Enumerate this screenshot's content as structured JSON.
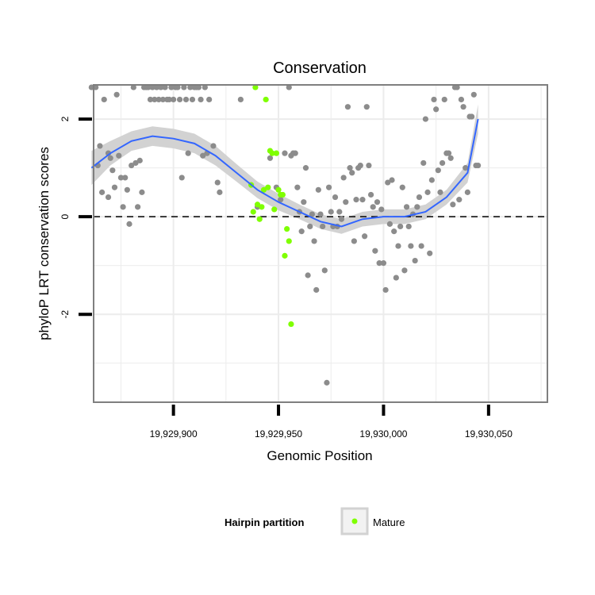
{
  "chart_data": {
    "type": "scatter",
    "title": "Conservation",
    "xlabel": "Genomic Position",
    "ylabel": "phyloP LRT conservation scores",
    "xlim": [
      19929862,
      19930078
    ],
    "ylim": [
      -3.8,
      2.7
    ],
    "x_ticks": [
      19929900,
      19929950,
      19930000,
      19930050
    ],
    "x_tick_labels": [
      "19,929,900",
      "19,929,950",
      "19,930,000",
      "19,930,050"
    ],
    "y_ticks": [
      -2,
      0,
      2
    ],
    "y_tick_labels": [
      "-2",
      "0",
      "2"
    ],
    "reference_line": {
      "y": 0,
      "style": "dashed"
    },
    "grid": true,
    "colors": {
      "other": "#8c8c8c",
      "mature": "#7fff00",
      "smooth": "#3366ff",
      "ribbon": "#d2d2d2",
      "panel_border": "#7f7f7f",
      "grid": "#ececec"
    },
    "series": [
      {
        "name": "Other",
        "legend": false,
        "points": [
          [
            19929861,
            2.65
          ],
          [
            19929863,
            2.65
          ],
          [
            19929864,
            1.05
          ],
          [
            19929865,
            1.45
          ],
          [
            19929866,
            0.5
          ],
          [
            19929867,
            2.4
          ],
          [
            19929869,
            1.3
          ],
          [
            19929869,
            0.4
          ],
          [
            19929870,
            1.2
          ],
          [
            19929871,
            0.95
          ],
          [
            19929872,
            0.6
          ],
          [
            19929873,
            2.5
          ],
          [
            19929874,
            1.25
          ],
          [
            19929875,
            0.8
          ],
          [
            19929876,
            0.2
          ],
          [
            19929877,
            0.8
          ],
          [
            19929878,
            0.55
          ],
          [
            19929879,
            -0.15
          ],
          [
            19929880,
            1.05
          ],
          [
            19929881,
            2.65
          ],
          [
            19929882,
            1.1
          ],
          [
            19929883,
            0.2
          ],
          [
            19929884,
            1.15
          ],
          [
            19929885,
            0.5
          ],
          [
            19929886,
            2.65
          ],
          [
            19929887,
            2.65
          ],
          [
            19929888,
            2.65
          ],
          [
            19929889,
            2.4
          ],
          [
            19929890,
            2.65
          ],
          [
            19929891,
            2.4
          ],
          [
            19929892,
            2.65
          ],
          [
            19929893,
            2.4
          ],
          [
            19929894,
            2.65
          ],
          [
            19929895,
            2.4
          ],
          [
            19929896,
            2.65
          ],
          [
            19929897,
            2.4
          ],
          [
            19929898,
            2.4
          ],
          [
            19929899,
            2.65
          ],
          [
            19929900,
            2.4
          ],
          [
            19929901,
            2.65
          ],
          [
            19929902,
            2.65
          ],
          [
            19929903,
            2.4
          ],
          [
            19929904,
            0.8
          ],
          [
            19929905,
            2.65
          ],
          [
            19929906,
            2.4
          ],
          [
            19929907,
            1.3
          ],
          [
            19929908,
            2.65
          ],
          [
            19929909,
            2.4
          ],
          [
            19929910,
            2.65
          ],
          [
            19929911,
            2.65
          ],
          [
            19929912,
            2.65
          ],
          [
            19929913,
            2.4
          ],
          [
            19929914,
            1.25
          ],
          [
            19929915,
            2.65
          ],
          [
            19929916,
            1.3
          ],
          [
            19929917,
            2.4
          ],
          [
            19929919,
            1.45
          ],
          [
            19929921,
            0.7
          ],
          [
            19929922,
            0.5
          ],
          [
            19929932,
            2.4
          ],
          [
            19929940,
            0.2
          ],
          [
            19929946,
            1.2
          ],
          [
            19929949,
            0.6
          ],
          [
            19929951,
            0.35
          ],
          [
            19929953,
            1.3
          ],
          [
            19929955,
            2.65
          ],
          [
            19929956,
            1.25
          ],
          [
            19929957,
            1.3
          ],
          [
            19929958,
            1.3
          ],
          [
            19929959,
            0.6
          ],
          [
            19929960,
            0.1
          ],
          [
            19929961,
            -0.3
          ],
          [
            19929962,
            0.3
          ],
          [
            19929963,
            1.0
          ],
          [
            19929964,
            -1.2
          ],
          [
            19929965,
            -0.2
          ],
          [
            19929966,
            0.05
          ],
          [
            19929967,
            -0.5
          ],
          [
            19929968,
            -1.5
          ],
          [
            19929969,
            0.55
          ],
          [
            19929970,
            0.05
          ],
          [
            19929971,
            -0.2
          ],
          [
            19929972,
            -1.1
          ],
          [
            19929973,
            -3.4
          ],
          [
            19929974,
            0.6
          ],
          [
            19929975,
            0.1
          ],
          [
            19929976,
            -0.2
          ],
          [
            19929977,
            0.4
          ],
          [
            19929978,
            -0.2
          ],
          [
            19929979,
            0.1
          ],
          [
            19929980,
            -0.05
          ],
          [
            19929981,
            0.8
          ],
          [
            19929982,
            0.3
          ],
          [
            19929983,
            2.25
          ],
          [
            19929984,
            1.0
          ],
          [
            19929985,
            0.9
          ],
          [
            19929986,
            -0.5
          ],
          [
            19929987,
            0.35
          ],
          [
            19929988,
            1.0
          ],
          [
            19929989,
            1.05
          ],
          [
            19929990,
            0.35
          ],
          [
            19929991,
            -0.4
          ],
          [
            19929992,
            2.25
          ],
          [
            19929993,
            1.05
          ],
          [
            19929994,
            0.45
          ],
          [
            19929995,
            0.2
          ],
          [
            19929996,
            -0.7
          ],
          [
            19929997,
            0.3
          ],
          [
            19929998,
            -0.95
          ],
          [
            19929999,
            0.15
          ],
          [
            19930000,
            -0.95
          ],
          [
            19930001,
            -1.5
          ],
          [
            19930002,
            0.7
          ],
          [
            19930003,
            -0.15
          ],
          [
            19930004,
            0.75
          ],
          [
            19930005,
            -0.3
          ],
          [
            19930006,
            -1.25
          ],
          [
            19930007,
            -0.6
          ],
          [
            19930008,
            -0.2
          ],
          [
            19930009,
            0.6
          ],
          [
            19930010,
            -1.1
          ],
          [
            19930011,
            0.2
          ],
          [
            19930012,
            -0.2
          ],
          [
            19930013,
            -0.6
          ],
          [
            19930014,
            0.05
          ],
          [
            19930015,
            -0.9
          ],
          [
            19930016,
            0.2
          ],
          [
            19930017,
            0.4
          ],
          [
            19930018,
            -0.6
          ],
          [
            19930019,
            1.1
          ],
          [
            19930020,
            2.0
          ],
          [
            19930021,
            0.5
          ],
          [
            19930022,
            -0.75
          ],
          [
            19930023,
            0.75
          ],
          [
            19930024,
            2.4
          ],
          [
            19930025,
            2.2
          ],
          [
            19930026,
            0.95
          ],
          [
            19930027,
            0.5
          ],
          [
            19930028,
            1.1
          ],
          [
            19930029,
            2.4
          ],
          [
            19930030,
            1.3
          ],
          [
            19930031,
            1.3
          ],
          [
            19930032,
            1.2
          ],
          [
            19930033,
            0.25
          ],
          [
            19930034,
            2.65
          ],
          [
            19930035,
            2.65
          ],
          [
            19930036,
            0.35
          ],
          [
            19930037,
            2.4
          ],
          [
            19930038,
            2.25
          ],
          [
            19930039,
            1.0
          ],
          [
            19930040,
            0.5
          ],
          [
            19930041,
            2.05
          ],
          [
            19930042,
            2.05
          ],
          [
            19930043,
            2.5
          ],
          [
            19930044,
            1.05
          ],
          [
            19930045,
            1.05
          ]
        ]
      },
      {
        "name": "Mature",
        "legend": true,
        "points": [
          [
            19929937,
            0.65
          ],
          [
            19929938,
            0.1
          ],
          [
            19929939,
            2.65
          ],
          [
            19929940,
            0.25
          ],
          [
            19929941,
            -0.05
          ],
          [
            19929942,
            0.2
          ],
          [
            19929943,
            0.55
          ],
          [
            19929944,
            2.4
          ],
          [
            19929945,
            0.6
          ],
          [
            19929946,
            1.35
          ],
          [
            19929947,
            1.3
          ],
          [
            19929948,
            0.15
          ],
          [
            19929949,
            1.3
          ],
          [
            19929950,
            0.55
          ],
          [
            19929951,
            0.45
          ],
          [
            19929952,
            0.45
          ],
          [
            19929953,
            -0.8
          ],
          [
            19929954,
            -0.25
          ],
          [
            19929955,
            -0.5
          ],
          [
            19929956,
            -2.2
          ]
        ]
      }
    ],
    "smooth": {
      "x": [
        19929861,
        19929870,
        19929880,
        19929890,
        19929900,
        19929910,
        19929920,
        19929930,
        19929940,
        19929950,
        19929960,
        19929970,
        19929980,
        19929990,
        19930000,
        19930010,
        19930020,
        19930030,
        19930040,
        19930045
      ],
      "y": [
        1.0,
        1.3,
        1.55,
        1.65,
        1.6,
        1.5,
        1.25,
        0.9,
        0.55,
        0.3,
        0.1,
        -0.1,
        -0.2,
        -0.05,
        0.0,
        0.0,
        0.1,
        0.4,
        0.9,
        2.0
      ],
      "se": [
        0.35,
        0.25,
        0.2,
        0.2,
        0.2,
        0.2,
        0.2,
        0.18,
        0.17,
        0.17,
        0.15,
        0.15,
        0.15,
        0.15,
        0.15,
        0.15,
        0.15,
        0.15,
        0.2,
        0.3
      ]
    },
    "legend": {
      "title": "Hairpin partition",
      "entries": [
        {
          "label": "Mature",
          "series": "Mature"
        }
      ],
      "position": "bottom"
    }
  }
}
